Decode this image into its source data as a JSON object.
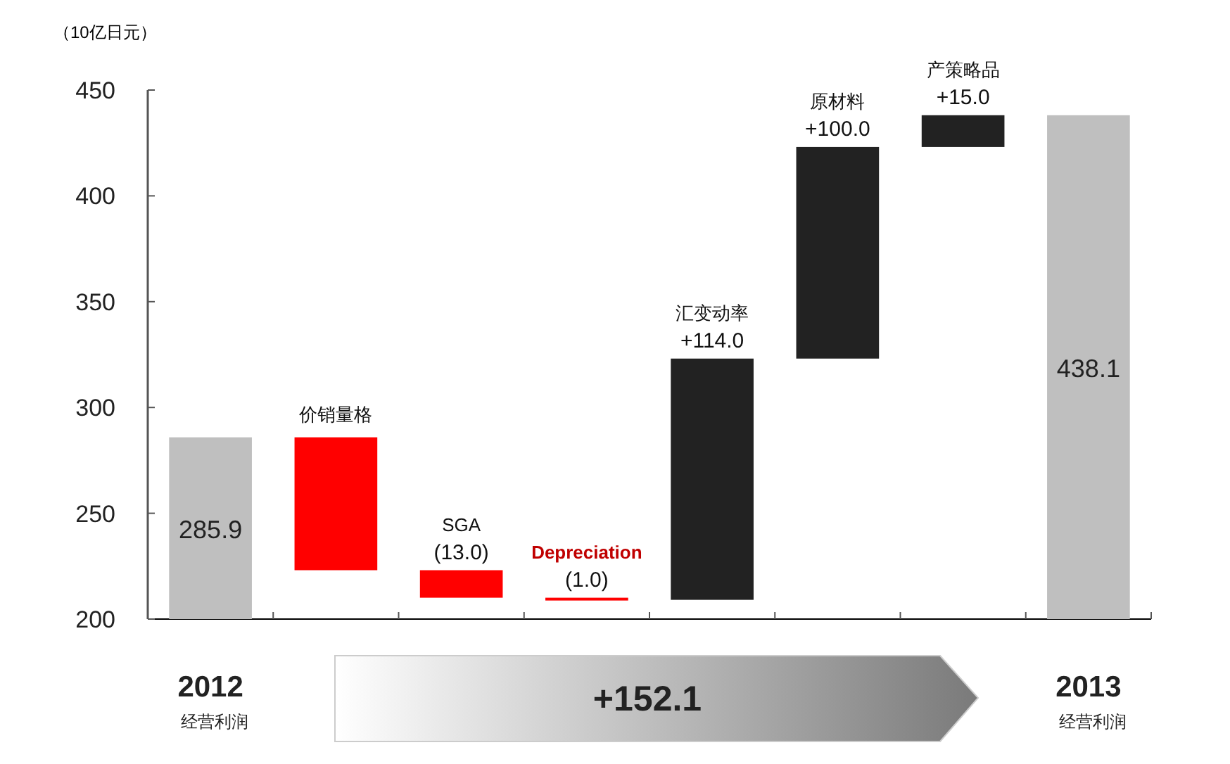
{
  "chart_data": {
    "type": "bar",
    "ylabel": "（10亿日元）",
    "categories": [
      "2012",
      "价销量格",
      "SGA",
      "Depreciation",
      "汇变动率",
      "原材料",
      "产策略品",
      "2013"
    ],
    "values": [
      285.9,
      -62.8,
      -13.0,
      -1.0,
      114.0,
      100.0,
      15.0,
      438.1
    ],
    "base": [
      null,
      285.9,
      223.1,
      210.1,
      209.1,
      323.1,
      423.1,
      null
    ],
    "colors": [
      "#bfbfbf",
      "#ff0000",
      "#ff0000",
      "#ff0000",
      "#222222",
      "#222222",
      "#222222",
      "#bfbfbf"
    ],
    "value_labels": [
      "285.9",
      null,
      "(13.0)",
      "(1.0)",
      "+114.0",
      "+100.0",
      "+15.0",
      "438.1"
    ],
    "ylim": [
      200,
      450
    ],
    "yticks": [
      200,
      250,
      300,
      350,
      400,
      450
    ],
    "annotations": [
      "经营利润",
      "经营利润",
      "+152.1"
    ]
  }
}
